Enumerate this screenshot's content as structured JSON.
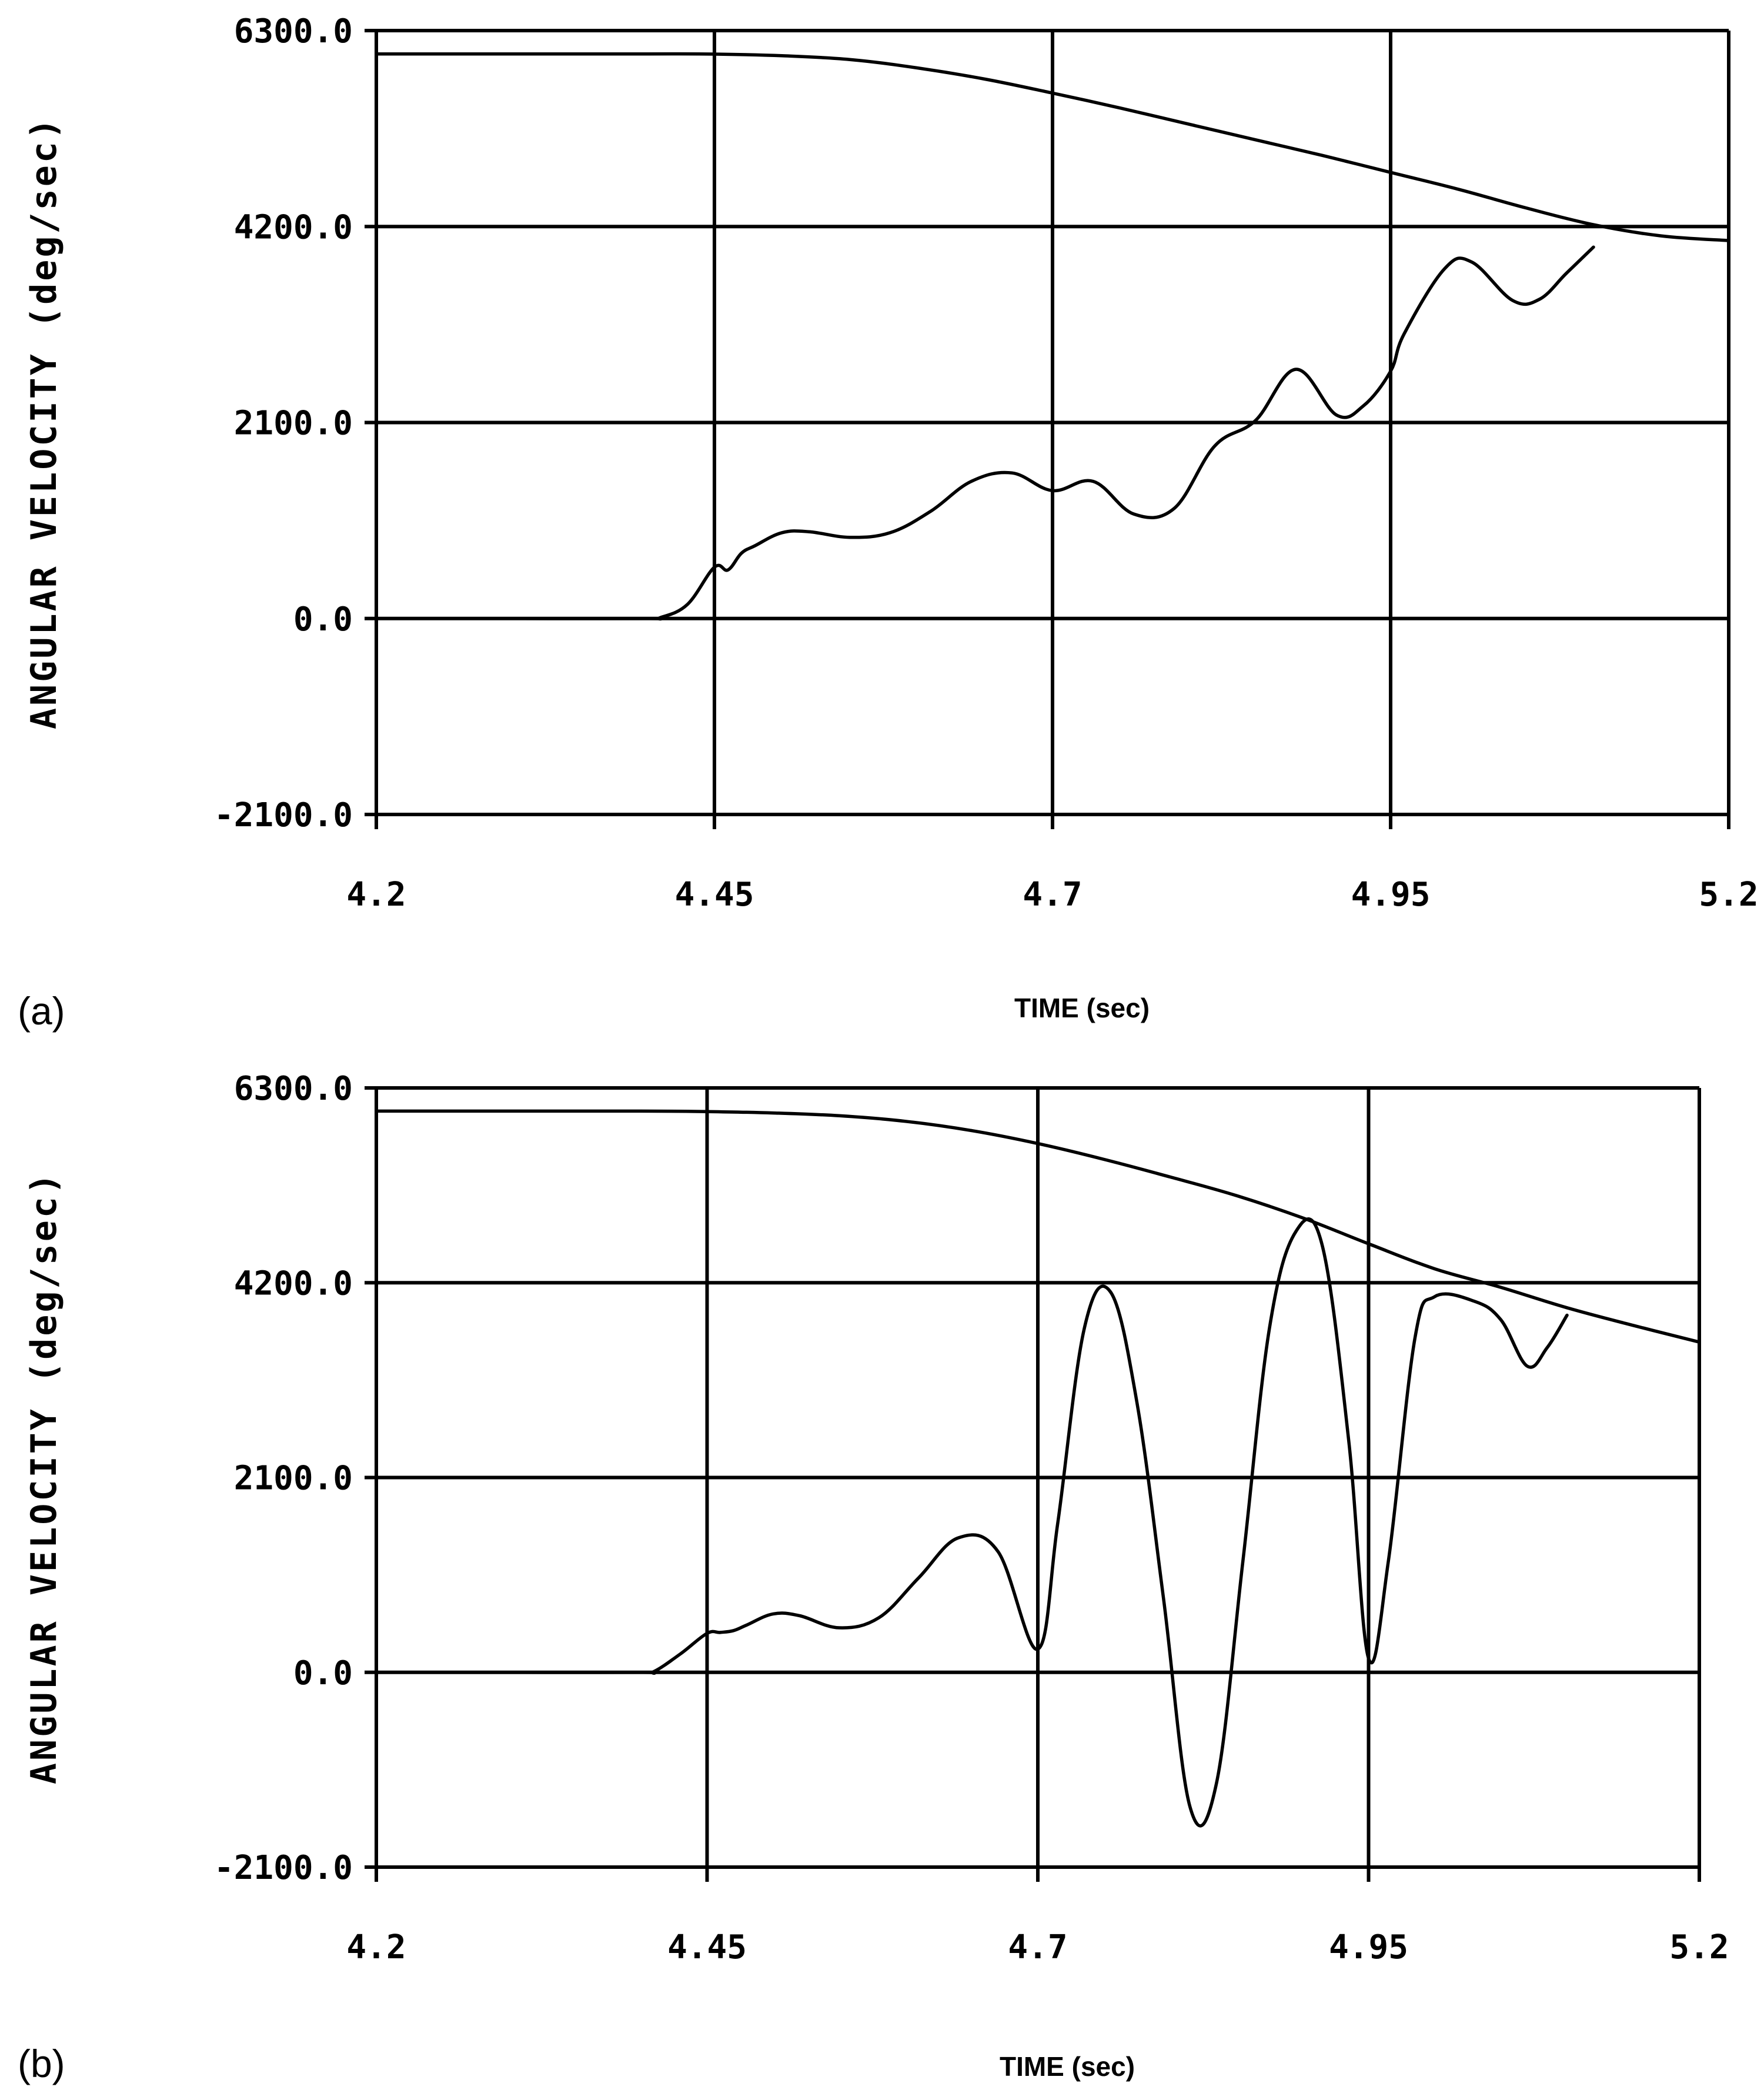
{
  "chart_data": [
    {
      "type": "line",
      "panel_label": "(a)",
      "xlabel": "TIME (sec)",
      "ylabel": "ANGULAR VELOCITY (deg/sec)",
      "xlim": [
        4.2,
        5.2
      ],
      "ylim": [
        -2100,
        6300
      ],
      "xticks": [
        "4.2",
        "4.45",
        "4.7",
        "4.95",
        "5.2"
      ],
      "yticks": [
        "6300.0",
        "4200.0",
        "2100.0",
        "0.0",
        "-2100.0"
      ],
      "grid": true,
      "series": [
        {
          "x": [
            4.2,
            4.3,
            4.4,
            4.45,
            4.5,
            4.55,
            4.6,
            4.65,
            4.7,
            4.75,
            4.8,
            4.85,
            4.9,
            4.95,
            5.0,
            5.05,
            5.1,
            5.15,
            5.2
          ],
          "y": [
            6050,
            6050,
            6050,
            6048,
            6030,
            5990,
            5900,
            5780,
            5630,
            5470,
            5300,
            5130,
            4960,
            4780,
            4600,
            4400,
            4220,
            4100,
            4050
          ]
        },
        {
          "x": [
            4.2,
            4.3,
            4.4,
            4.41,
            4.43,
            4.45,
            4.46,
            4.47,
            4.48,
            4.5,
            4.52,
            4.55,
            4.58,
            4.61,
            4.64,
            4.67,
            4.7,
            4.73,
            4.76,
            4.79,
            4.82,
            4.85,
            4.88,
            4.91,
            4.93,
            4.95,
            4.96,
            4.99,
            5.01,
            5.04,
            5.06,
            5.08,
            5.1
          ],
          "y": [
            0,
            0,
            0,
            10,
            150,
            550,
            520,
            700,
            780,
            920,
            930,
            870,
            920,
            1150,
            1470,
            1560,
            1370,
            1470,
            1120,
            1180,
            1850,
            2120,
            2670,
            2180,
            2280,
            2650,
            3050,
            3750,
            3820,
            3410,
            3420,
            3700,
            3980
          ]
        }
      ]
    },
    {
      "type": "line",
      "panel_label": "(b)",
      "xlabel": "TIME (sec)",
      "ylabel": "ANGULAR VELOCITY (deg/sec)",
      "xlim": [
        4.2,
        5.2
      ],
      "ylim": [
        -2100,
        6300
      ],
      "xticks": [
        "4.2",
        "4.45",
        "4.7",
        "4.95",
        "5.2"
      ],
      "yticks": [
        "6300.0",
        "4200.0",
        "2100.0",
        "0.0",
        "-2100.0"
      ],
      "grid": true,
      "series": [
        {
          "x": [
            4.2,
            4.3,
            4.4,
            4.45,
            4.5,
            4.55,
            4.6,
            4.65,
            4.7,
            4.75,
            4.8,
            4.85,
            4.9,
            4.95,
            5.0,
            5.05,
            5.1,
            5.15,
            5.2
          ],
          "y": [
            6050,
            6050,
            6050,
            6045,
            6030,
            6000,
            5940,
            5840,
            5700,
            5530,
            5340,
            5140,
            4900,
            4620,
            4350,
            4150,
            3930,
            3740,
            3560
          ]
        },
        {
          "x": [
            4.2,
            4.3,
            4.4,
            4.41,
            4.43,
            4.45,
            4.46,
            4.47,
            4.48,
            4.5,
            4.52,
            4.55,
            4.58,
            4.61,
            4.64,
            4.67,
            4.7,
            4.715,
            4.735,
            4.755,
            4.775,
            4.795,
            4.815,
            4.835,
            4.855,
            4.875,
            4.895,
            4.915,
            4.935,
            4.95,
            4.965,
            4.985,
            5.0,
            5.03,
            5.05,
            5.07,
            5.085,
            5.1
          ],
          "y": [
            0,
            0,
            0,
            10,
            200,
            420,
            430,
            450,
            510,
            630,
            610,
            480,
            590,
            1020,
            1450,
            1300,
            250,
            1600,
            3700,
            4100,
            2900,
            800,
            -1450,
            -1200,
            1200,
            3700,
            4750,
            4600,
            2500,
            150,
            1200,
            3600,
            4050,
            4000,
            3800,
            3300,
            3500,
            3850
          ]
        }
      ]
    }
  ]
}
